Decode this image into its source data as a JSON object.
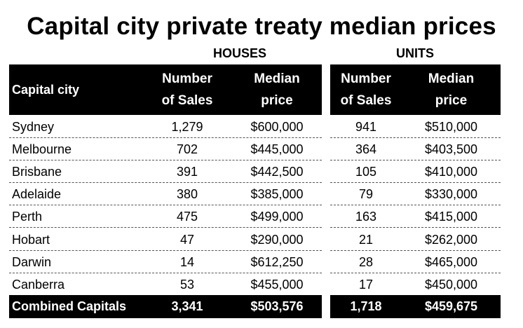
{
  "title": "Capital city private treaty median prices",
  "groups": {
    "houses": "HOUSES",
    "units": "UNITS"
  },
  "headers": {
    "city": "Capital city",
    "sales_line1": "Number",
    "sales_line2": "of Sales",
    "price_line1": "Median",
    "price_line2": "price"
  },
  "rows": [
    {
      "city": "Sydney",
      "houses_sales": "1,279",
      "houses_price": "$600,000",
      "units_sales": "941",
      "units_price": "$510,000"
    },
    {
      "city": "Melbourne",
      "houses_sales": "702",
      "houses_price": "$445,000",
      "units_sales": "364",
      "units_price": "$403,500"
    },
    {
      "city": "Brisbane",
      "houses_sales": "391",
      "houses_price": "$442,500",
      "units_sales": "105",
      "units_price": "$410,000"
    },
    {
      "city": "Adelaide",
      "houses_sales": "380",
      "houses_price": "$385,000",
      "units_sales": "79",
      "units_price": "$330,000"
    },
    {
      "city": "Perth",
      "houses_sales": "475",
      "houses_price": "$499,000",
      "units_sales": "163",
      "units_price": "$415,000"
    },
    {
      "city": "Hobart",
      "houses_sales": "47",
      "houses_price": "$290,000",
      "units_sales": "21",
      "units_price": "$262,000"
    },
    {
      "city": "Darwin",
      "houses_sales": "14",
      "houses_price": "$612,250",
      "units_sales": "28",
      "units_price": "$465,000"
    },
    {
      "city": "Canberra",
      "houses_sales": "53",
      "houses_price": "$455,000",
      "units_sales": "17",
      "units_price": "$450,000"
    }
  ],
  "total": {
    "city": "Combined Capitals",
    "houses_sales": "3,341",
    "houses_price": "$503,576",
    "units_sales": "1,718",
    "units_price": "$459,675"
  }
}
